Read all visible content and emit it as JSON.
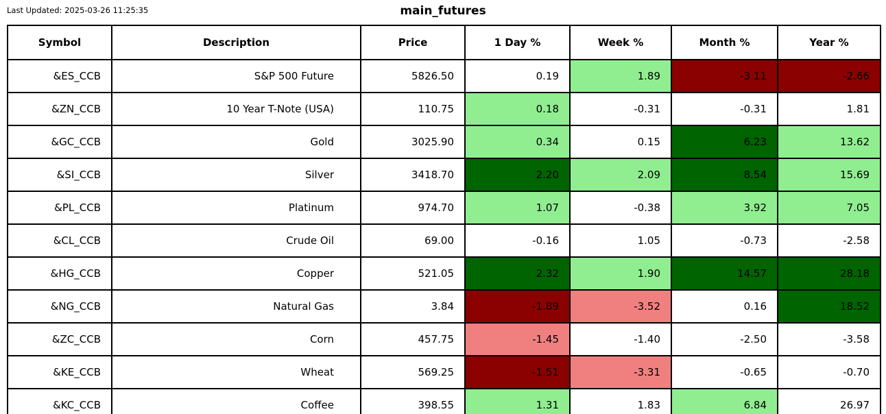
{
  "header": {
    "last_updated": "Last Updated: 2025-03-26 11:25:35",
    "title": "main_futures"
  },
  "chart_data": {
    "type": "table",
    "title": "main_futures",
    "columns": [
      "Symbol",
      "Description",
      "Price",
      "1 Day %",
      "Week %",
      "Month %",
      "Year %"
    ],
    "colors": {
      "white": "#FFFFFF",
      "light_green": "#90EE90",
      "dark_green": "#006400",
      "light_red": "#F08080",
      "dark_red": "#8B0000",
      "border": "#000000",
      "text": "#000000"
    },
    "rows": [
      {
        "symbol": "&ES_CCB",
        "description": "S&P 500 Future",
        "price": "5826.50",
        "changes": [
          {
            "label": "1 Day %",
            "value": "0.19",
            "bg": "white"
          },
          {
            "label": "Week %",
            "value": "1.89",
            "bg": "light_green"
          },
          {
            "label": "Month %",
            "value": "-3.11",
            "bg": "dark_red"
          },
          {
            "label": "Year %",
            "value": "-2.66",
            "bg": "dark_red"
          }
        ]
      },
      {
        "symbol": "&ZN_CCB",
        "description": "10 Year T-Note (USA)",
        "price": "110.75",
        "changes": [
          {
            "label": "1 Day %",
            "value": "0.18",
            "bg": "light_green"
          },
          {
            "label": "Week %",
            "value": "-0.31",
            "bg": "white"
          },
          {
            "label": "Month %",
            "value": "-0.31",
            "bg": "white"
          },
          {
            "label": "Year %",
            "value": "1.81",
            "bg": "white"
          }
        ]
      },
      {
        "symbol": "&GC_CCB",
        "description": "Gold",
        "price": "3025.90",
        "changes": [
          {
            "label": "1 Day %",
            "value": "0.34",
            "bg": "light_green"
          },
          {
            "label": "Week %",
            "value": "0.15",
            "bg": "white"
          },
          {
            "label": "Month %",
            "value": "6.23",
            "bg": "dark_green"
          },
          {
            "label": "Year %",
            "value": "13.62",
            "bg": "light_green"
          }
        ]
      },
      {
        "symbol": "&SI_CCB",
        "description": "Silver",
        "price": "3418.70",
        "changes": [
          {
            "label": "1 Day %",
            "value": "2.20",
            "bg": "dark_green"
          },
          {
            "label": "Week %",
            "value": "2.09",
            "bg": "light_green"
          },
          {
            "label": "Month %",
            "value": "8.54",
            "bg": "dark_green"
          },
          {
            "label": "Year %",
            "value": "15.69",
            "bg": "light_green"
          }
        ]
      },
      {
        "symbol": "&PL_CCB",
        "description": "Platinum",
        "price": "974.70",
        "changes": [
          {
            "label": "1 Day %",
            "value": "1.07",
            "bg": "light_green"
          },
          {
            "label": "Week %",
            "value": "-0.38",
            "bg": "white"
          },
          {
            "label": "Month %",
            "value": "3.92",
            "bg": "light_green"
          },
          {
            "label": "Year %",
            "value": "7.05",
            "bg": "light_green"
          }
        ]
      },
      {
        "symbol": "&CL_CCB",
        "description": "Crude Oil",
        "price": "69.00",
        "changes": [
          {
            "label": "1 Day %",
            "value": "-0.16",
            "bg": "white"
          },
          {
            "label": "Week %",
            "value": "1.05",
            "bg": "white"
          },
          {
            "label": "Month %",
            "value": "-0.73",
            "bg": "white"
          },
          {
            "label": "Year %",
            "value": "-2.58",
            "bg": "white"
          }
        ]
      },
      {
        "symbol": "&HG_CCB",
        "description": "Copper",
        "price": "521.05",
        "changes": [
          {
            "label": "1 Day %",
            "value": "2.32",
            "bg": "dark_green"
          },
          {
            "label": "Week %",
            "value": "1.90",
            "bg": "light_green"
          },
          {
            "label": "Month %",
            "value": "14.57",
            "bg": "dark_green"
          },
          {
            "label": "Year %",
            "value": "28.18",
            "bg": "dark_green"
          }
        ]
      },
      {
        "symbol": "&NG_CCB",
        "description": "Natural Gas",
        "price": "3.84",
        "changes": [
          {
            "label": "1 Day %",
            "value": "-1.89",
            "bg": "dark_red"
          },
          {
            "label": "Week %",
            "value": "-3.52",
            "bg": "light_red"
          },
          {
            "label": "Month %",
            "value": "0.16",
            "bg": "white"
          },
          {
            "label": "Year %",
            "value": "18.52",
            "bg": "dark_green"
          }
        ]
      },
      {
        "symbol": "&ZC_CCB",
        "description": "Corn",
        "price": "457.75",
        "changes": [
          {
            "label": "1 Day %",
            "value": "-1.45",
            "bg": "light_red"
          },
          {
            "label": "Week %",
            "value": "-1.40",
            "bg": "white"
          },
          {
            "label": "Month %",
            "value": "-2.50",
            "bg": "white"
          },
          {
            "label": "Year %",
            "value": "-3.58",
            "bg": "white"
          }
        ]
      },
      {
        "symbol": "&KE_CCB",
        "description": "Wheat",
        "price": "569.25",
        "changes": [
          {
            "label": "1 Day %",
            "value": "-1.51",
            "bg": "dark_red"
          },
          {
            "label": "Week %",
            "value": "-3.31",
            "bg": "light_red"
          },
          {
            "label": "Month %",
            "value": "-0.65",
            "bg": "white"
          },
          {
            "label": "Year %",
            "value": "-0.70",
            "bg": "white"
          }
        ]
      },
      {
        "symbol": "&KC_CCB",
        "description": "Coffee",
        "price": "398.55",
        "changes": [
          {
            "label": "1 Day %",
            "value": "1.31",
            "bg": "light_green"
          },
          {
            "label": "Week %",
            "value": "1.83",
            "bg": "white"
          },
          {
            "label": "Month %",
            "value": "6.84",
            "bg": "light_green"
          },
          {
            "label": "Year %",
            "value": "26.97",
            "bg": "white"
          }
        ]
      }
    ]
  }
}
